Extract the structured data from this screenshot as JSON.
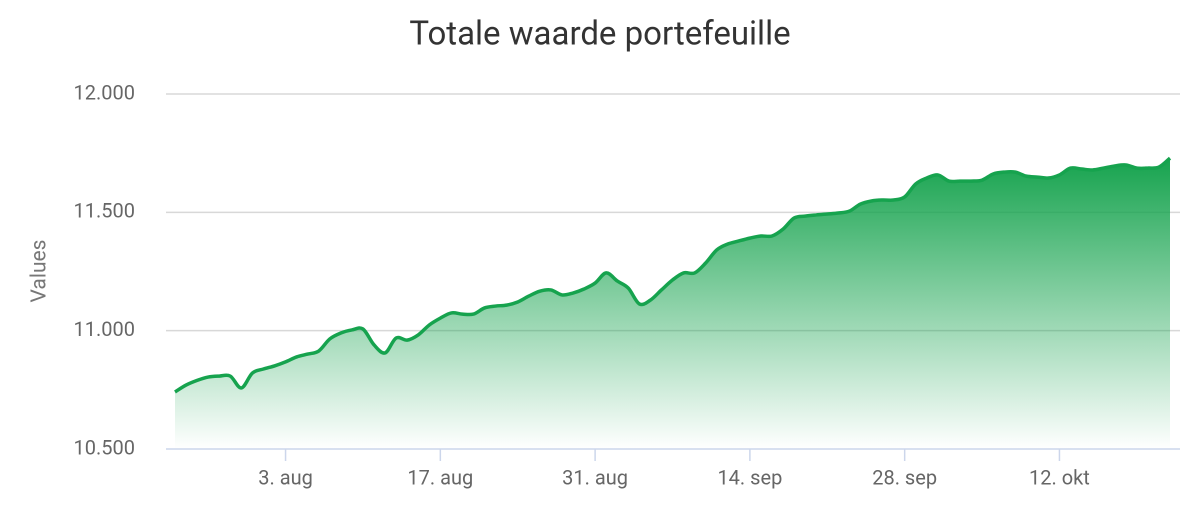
{
  "chart_data": {
    "type": "area",
    "title": "Totale waarde portefeuille",
    "y_label": "Values",
    "categories": [
      null,
      null,
      null,
      null,
      null,
      null,
      null,
      null,
      null,
      null,
      "3. aug",
      null,
      null,
      null,
      null,
      null,
      null,
      null,
      null,
      null,
      null,
      null,
      null,
      null,
      "17. aug",
      null,
      null,
      null,
      null,
      null,
      null,
      null,
      null,
      null,
      null,
      null,
      null,
      null,
      "31. aug",
      null,
      null,
      null,
      null,
      null,
      null,
      null,
      null,
      null,
      null,
      null,
      null,
      null,
      "14. sep",
      null,
      null,
      null,
      null,
      null,
      null,
      null,
      null,
      null,
      null,
      null,
      null,
      null,
      "28. sep",
      null,
      null,
      null,
      null,
      null,
      null,
      null,
      null,
      null,
      null,
      null,
      null,
      null,
      "12. okt",
      null,
      null,
      null,
      null,
      null,
      null,
      null,
      null,
      null,
      null
    ],
    "series": [
      {
        "name": "Values",
        "color": "#16a34e",
        "values": [
          10741,
          10770,
          10790,
          10804,
          10808,
          10808,
          10758,
          10821,
          10838,
          10851,
          10868,
          10889,
          10901,
          10914,
          10965,
          10990,
          11003,
          11007,
          10940,
          10906,
          10969,
          10960,
          10982,
          11024,
          11053,
          11075,
          11070,
          11070,
          11096,
          11104,
          11108,
          11121,
          11146,
          11167,
          11172,
          11151,
          11159,
          11176,
          11201,
          11244,
          11210,
          11180,
          11113,
          11129,
          11172,
          11214,
          11244,
          11244,
          11286,
          11341,
          11366,
          11379,
          11391,
          11400,
          11400,
          11429,
          11476,
          11484,
          11489,
          11493,
          11497,
          11505,
          11535,
          11548,
          11552,
          11552,
          11565,
          11620,
          11645,
          11658,
          11632,
          11632,
          11632,
          11636,
          11662,
          11670,
          11670,
          11653,
          11649,
          11645,
          11658,
          11687,
          11683,
          11679,
          11687,
          11696,
          11700,
          11687,
          11687,
          11691,
          11729
        ]
      }
    ],
    "ylim": [
      10500,
      12000
    ],
    "yticks": [
      {
        "value": 10500,
        "label": "10.500"
      },
      {
        "value": 11000,
        "label": "11.000"
      },
      {
        "value": 11500,
        "label": "11.500"
      },
      {
        "value": 12000,
        "label": "12.000"
      }
    ],
    "grid": true
  }
}
